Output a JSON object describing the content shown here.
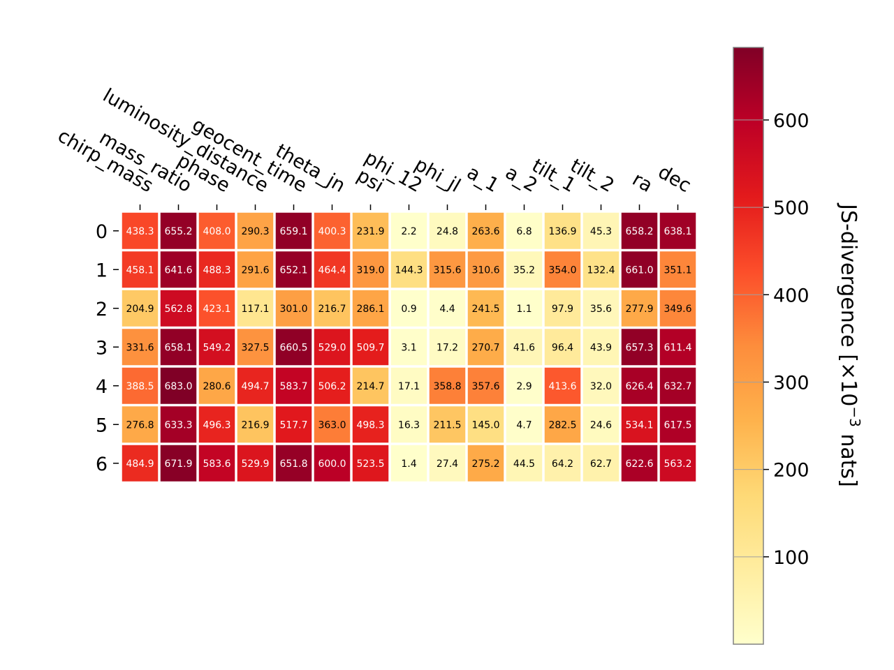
{
  "chart_data": {
    "type": "heatmap",
    "title": "",
    "x_categories": [
      "chirp_mass",
      "mass_ratio",
      "phase",
      "luminosity_distance",
      "geocent_time",
      "theta_jn",
      "psi",
      "phi_12",
      "phi_jl",
      "a_1",
      "a_2",
      "tilt_1",
      "tilt_2",
      "ra",
      "dec"
    ],
    "y_categories": [
      "0",
      "1",
      "2",
      "3",
      "4",
      "5",
      "6"
    ],
    "values": [
      [
        438.3,
        655.2,
        408.0,
        290.3,
        659.1,
        400.3,
        231.9,
        2.2,
        24.8,
        263.6,
        6.8,
        136.9,
        45.3,
        658.2,
        638.1
      ],
      [
        458.1,
        641.6,
        488.3,
        291.6,
        652.1,
        464.4,
        319.0,
        144.3,
        315.6,
        310.6,
        35.2,
        354.0,
        132.4,
        661.0,
        351.1
      ],
      [
        204.9,
        562.8,
        423.1,
        117.1,
        301.0,
        216.7,
        286.1,
        0.9,
        4.4,
        241.5,
        1.1,
        97.9,
        35.6,
        277.9,
        349.6
      ],
      [
        331.6,
        658.1,
        549.2,
        327.5,
        660.5,
        529.0,
        509.7,
        3.1,
        17.2,
        270.7,
        41.6,
        96.4,
        43.9,
        657.3,
        611.4
      ],
      [
        388.5,
        683.0,
        280.6,
        494.7,
        583.7,
        506.2,
        214.7,
        17.1,
        358.8,
        357.6,
        2.9,
        413.6,
        32.0,
        626.4,
        632.7
      ],
      [
        276.8,
        633.3,
        496.3,
        216.9,
        517.7,
        363.0,
        498.3,
        16.3,
        211.5,
        145.0,
        4.7,
        282.5,
        24.6,
        534.1,
        617.5
      ],
      [
        484.9,
        671.9,
        583.6,
        529.9,
        651.8,
        600.0,
        523.5,
        1.4,
        27.4,
        275.2,
        44.5,
        64.2,
        62.7,
        622.6,
        563.2
      ]
    ],
    "colormap": "YlOrRd",
    "vmin": 0,
    "vmax": 683,
    "colorbar": {
      "label": "JS-divergence [×10",
      "label_exponent": "−3",
      "label_suffix": " nats]",
      "ticks": [
        100,
        200,
        300,
        400,
        500,
        600
      ]
    },
    "colorscale_stops": [
      "#ffffcc",
      "#ffeda0",
      "#fed976",
      "#feb24c",
      "#fd8d3c",
      "#fc4e2a",
      "#e31a1c",
      "#bd0026",
      "#800026"
    ]
  }
}
